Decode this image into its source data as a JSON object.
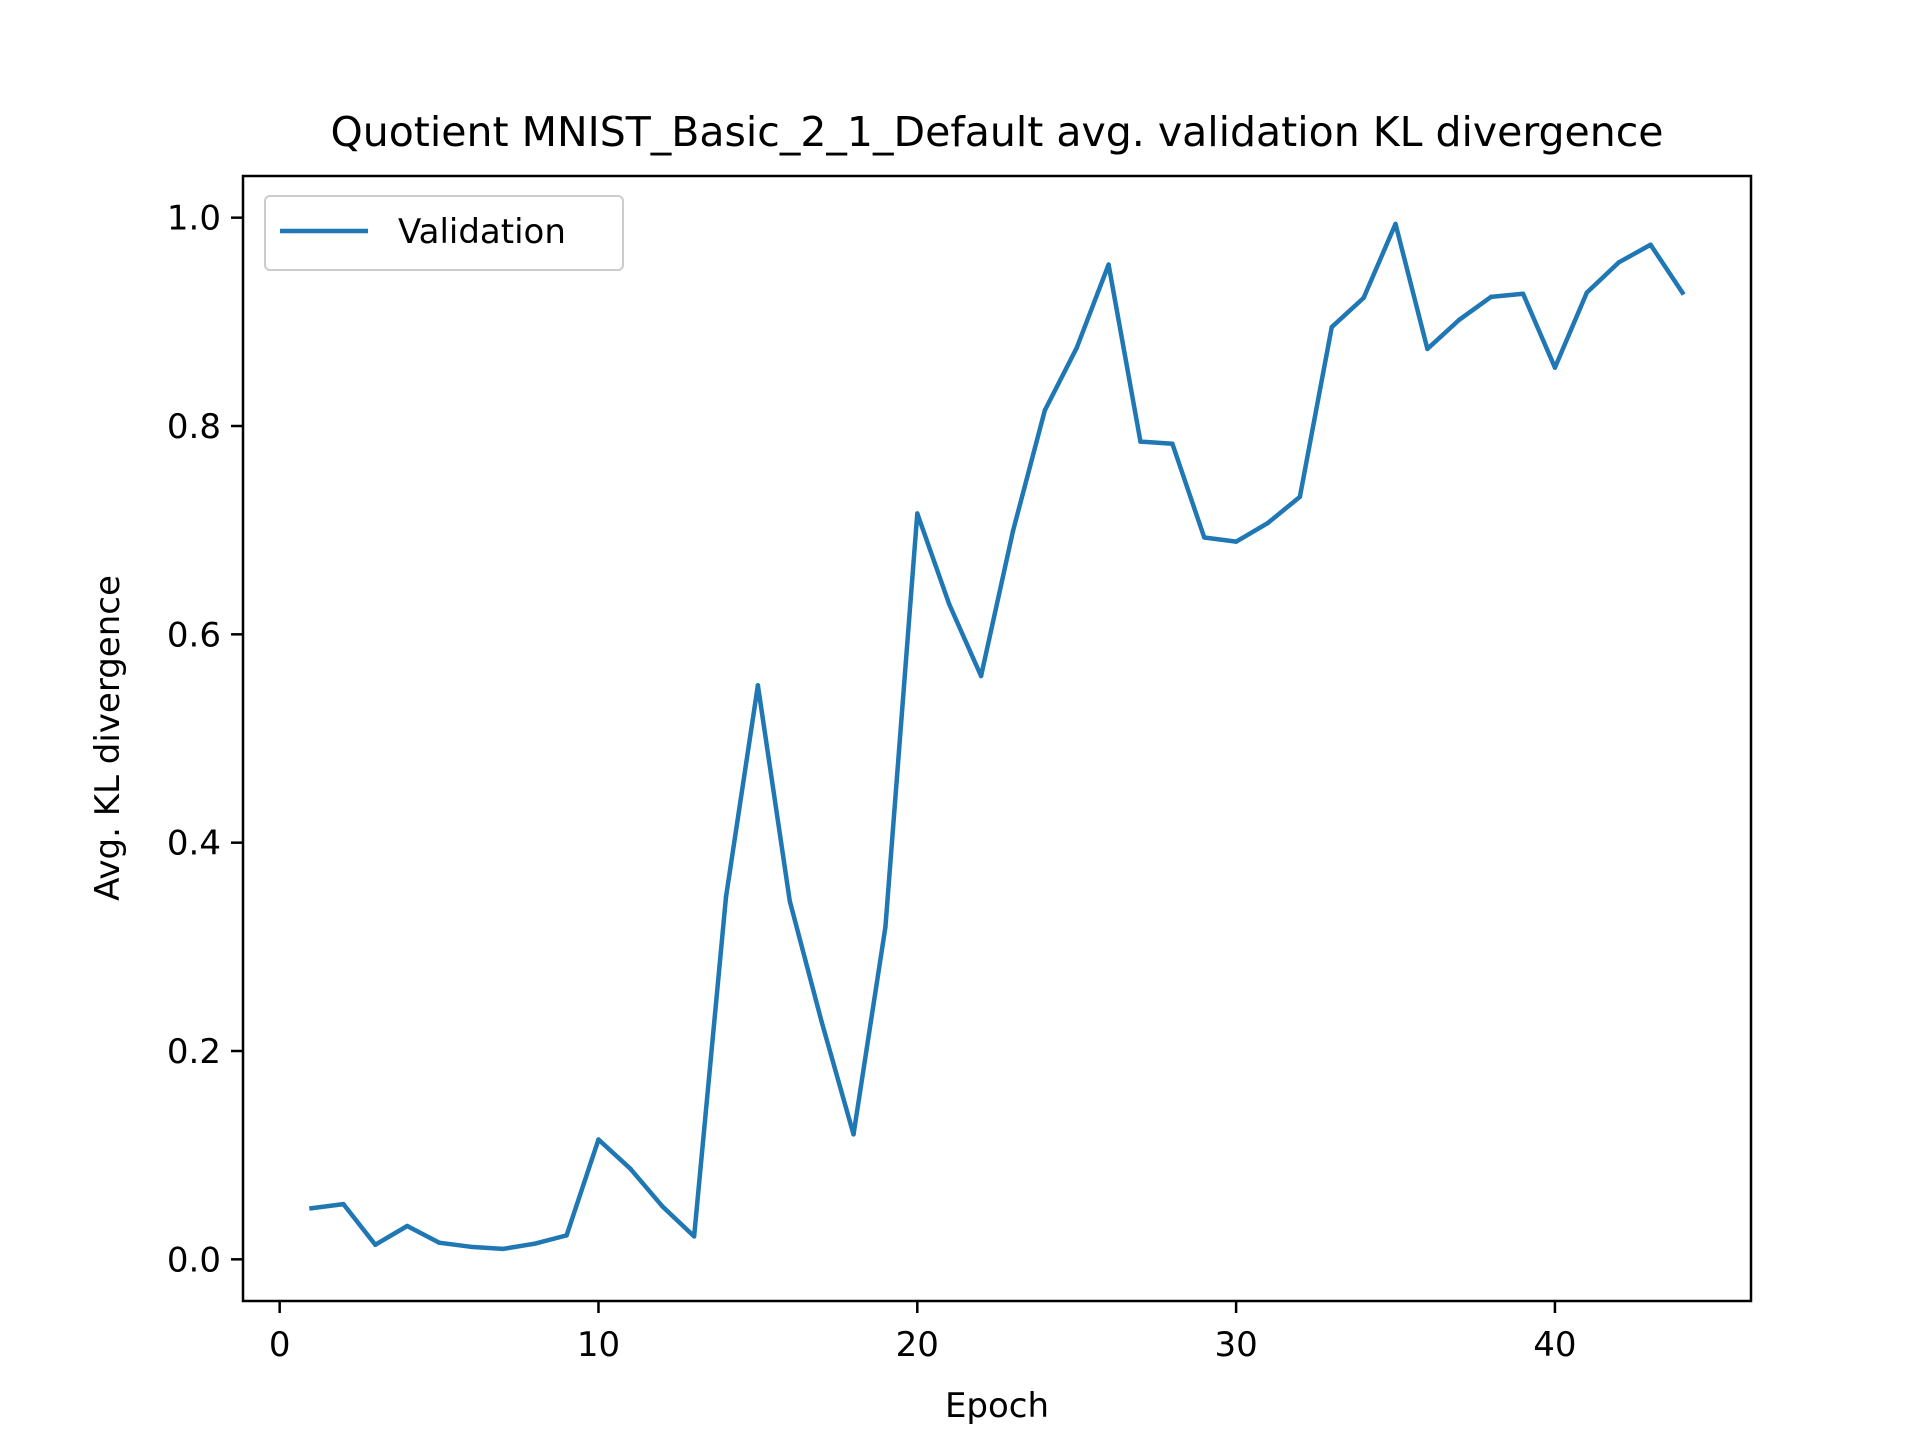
{
  "chart_data": {
    "type": "line",
    "title": "Quotient MNIST_Basic_2_1_Default avg. validation KL divergence",
    "xlabel": "Epoch",
    "ylabel": "Avg. KL divergence",
    "xlim": [
      -1.15,
      46.15
    ],
    "ylim": [
      -0.04,
      1.04
    ],
    "xticks": [
      0,
      10,
      20,
      30,
      40
    ],
    "yticks": [
      0.0,
      0.2,
      0.4,
      0.6,
      0.8,
      1.0
    ],
    "ytick_labels": [
      "0.0",
      "0.2",
      "0.4",
      "0.6",
      "0.8",
      "1.0"
    ],
    "grid": false,
    "legend_position": "upper left",
    "series": [
      {
        "name": "Validation",
        "color": "#1f77b4",
        "x": [
          1,
          2,
          3,
          4,
          5,
          6,
          7,
          8,
          9,
          10,
          11,
          12,
          13,
          14,
          15,
          16,
          17,
          18,
          19,
          20,
          21,
          22,
          23,
          24,
          25,
          26,
          27,
          28,
          29,
          30,
          31,
          32,
          33,
          34,
          35,
          36,
          37,
          38,
          39,
          40,
          41,
          42,
          43,
          44
        ],
        "y": [
          0.049,
          0.053,
          0.014,
          0.032,
          0.016,
          0.012,
          0.01,
          0.015,
          0.023,
          0.115,
          0.087,
          0.051,
          0.022,
          0.348,
          0.551,
          0.344,
          0.228,
          0.12,
          0.319,
          0.716,
          0.629,
          0.56,
          0.699,
          0.815,
          0.875,
          0.955,
          0.785,
          0.783,
          0.693,
          0.689,
          0.707,
          0.732,
          0.895,
          0.923,
          0.994,
          0.874,
          0.902,
          0.924,
          0.927,
          0.856,
          0.928,
          0.957,
          0.974,
          0.928
        ]
      }
    ]
  }
}
